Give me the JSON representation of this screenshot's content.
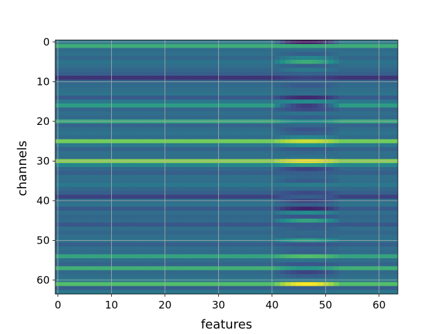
{
  "chart_data": {
    "type": "heatmap",
    "title": "",
    "xlabel": "features",
    "ylabel": "channels",
    "colormap": "viridis",
    "x_range": [
      0,
      63
    ],
    "y_range": [
      0,
      63
    ],
    "y_inverted": true,
    "grid": true,
    "x_ticks": [
      "0",
      "10",
      "20",
      "30",
      "40",
      "50",
      "60"
    ],
    "y_ticks": [
      "0",
      "10",
      "20",
      "30",
      "40",
      "50",
      "60"
    ],
    "grid_color": "#b0b0b0",
    "rows": 64,
    "cols": 64,
    "row_base_values": [
      0.4,
      0.62,
      0.35,
      0.37,
      0.33,
      0.38,
      0.36,
      0.33,
      0.3,
      0.15,
      0.33,
      0.35,
      0.36,
      0.38,
      0.28,
      0.4,
      0.55,
      0.33,
      0.36,
      0.34,
      0.6,
      0.32,
      0.36,
      0.38,
      0.35,
      0.78,
      0.4,
      0.32,
      0.37,
      0.36,
      0.82,
      0.46,
      0.34,
      0.3,
      0.37,
      0.36,
      0.4,
      0.34,
      0.3,
      0.2,
      0.36,
      0.38,
      0.28,
      0.36,
      0.33,
      0.35,
      0.27,
      0.36,
      0.33,
      0.36,
      0.38,
      0.3,
      0.36,
      0.35,
      0.58,
      0.36,
      0.32,
      0.63,
      0.34,
      0.36,
      0.4,
      0.7,
      0.3,
      0.4
    ],
    "band_feature_range": [
      41,
      52
    ],
    "band_peak_values": [
      0.05,
      0.6,
      0.36,
      0.3,
      0.45,
      0.62,
      0.3,
      0.4,
      0.32,
      0.2,
      0.32,
      0.28,
      0.34,
      0.36,
      0.12,
      0.48,
      0.18,
      0.22,
      0.38,
      0.3,
      0.48,
      0.33,
      0.25,
      0.3,
      0.45,
      0.92,
      0.5,
      0.28,
      0.34,
      0.38,
      0.98,
      0.55,
      0.2,
      0.3,
      0.32,
      0.28,
      0.42,
      0.34,
      0.22,
      0.3,
      0.2,
      0.3,
      0.1,
      0.48,
      0.25,
      0.58,
      0.28,
      0.3,
      0.34,
      0.32,
      0.56,
      0.25,
      0.32,
      0.3,
      0.7,
      0.38,
      0.26,
      0.52,
      0.2,
      0.3,
      0.4,
      1.0,
      0.3,
      0.38
    ]
  },
  "labels": {
    "xlabel": "features",
    "ylabel": "channels",
    "x_ticks": [
      "0",
      "10",
      "20",
      "30",
      "40",
      "50",
      "60"
    ],
    "y_ticks": [
      "0",
      "10",
      "20",
      "30",
      "40",
      "50",
      "60"
    ]
  }
}
